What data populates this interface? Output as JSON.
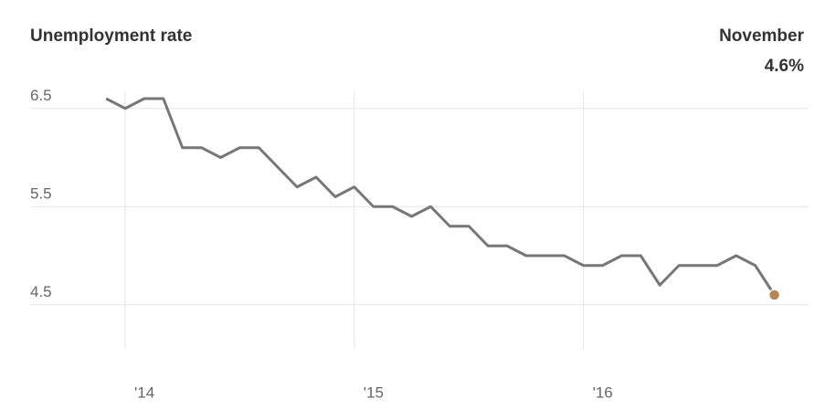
{
  "chart_data": {
    "type": "line",
    "title": "Unemployment rate",
    "annotation": {
      "label": "November",
      "value": "4.6%"
    },
    "categories": [
      null,
      "'14",
      null,
      null,
      null,
      null,
      null,
      null,
      null,
      null,
      null,
      null,
      null,
      "'15",
      null,
      null,
      null,
      null,
      null,
      null,
      null,
      null,
      null,
      null,
      null,
      "'16",
      null,
      null,
      null,
      null,
      null,
      null,
      null,
      null,
      null,
      null
    ],
    "series": [
      {
        "name": "Unemployment rate",
        "color": "#777777",
        "values": [
          6.6,
          6.5,
          6.6,
          6.6,
          6.1,
          6.1,
          6.0,
          6.1,
          6.1,
          5.9,
          5.7,
          5.8,
          5.6,
          5.7,
          5.5,
          5.5,
          5.4,
          5.5,
          5.3,
          5.3,
          5.1,
          5.1,
          5.0,
          5.0,
          5.0,
          4.9,
          4.9,
          5.0,
          5.0,
          4.7,
          4.9,
          4.9,
          4.9,
          5.0,
          4.9,
          4.6
        ]
      }
    ],
    "marker_color": "#b5885a",
    "ylim": [
      4.0,
      6.9
    ],
    "yticks": [
      4.5,
      5.5,
      6.5
    ],
    "grid": true
  }
}
